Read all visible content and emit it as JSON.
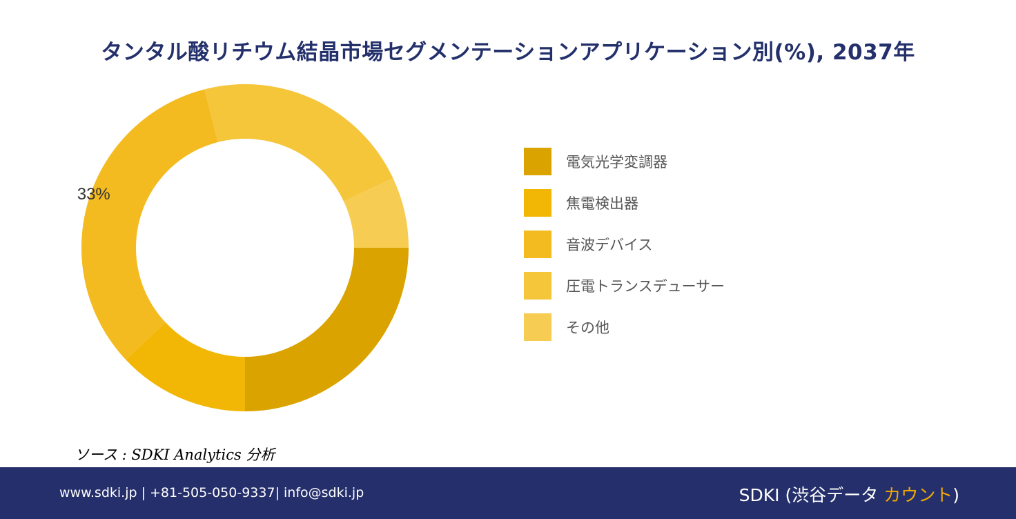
{
  "title": "タンタル酸リチウム結晶市場セグメンテーションアプリケーション別(%), 2037年",
  "chart_data": {
    "type": "pie",
    "variant": "donut",
    "categories": [
      "電気光学変調器",
      "焦電検出器",
      "音波デバイス",
      "圧電トランスデューサー",
      "その他"
    ],
    "values": [
      25,
      13,
      33,
      22,
      7
    ],
    "colors": [
      "#daa300",
      "#f2b705",
      "#f3bb1f",
      "#f5c53a",
      "#f6cd52"
    ],
    "data_labels": [
      "",
      "",
      "33%",
      "",
      ""
    ],
    "legend_position": "right"
  },
  "source": "ソース : SDKI Analytics 分析",
  "footer": {
    "contact": "www.sdki.jp | +81-505-050-9337| info@sdki.jp",
    "brand_prefix": "SDKI (渋谷データ ",
    "brand_accent": "カウント",
    "brand_suffix": ")"
  }
}
